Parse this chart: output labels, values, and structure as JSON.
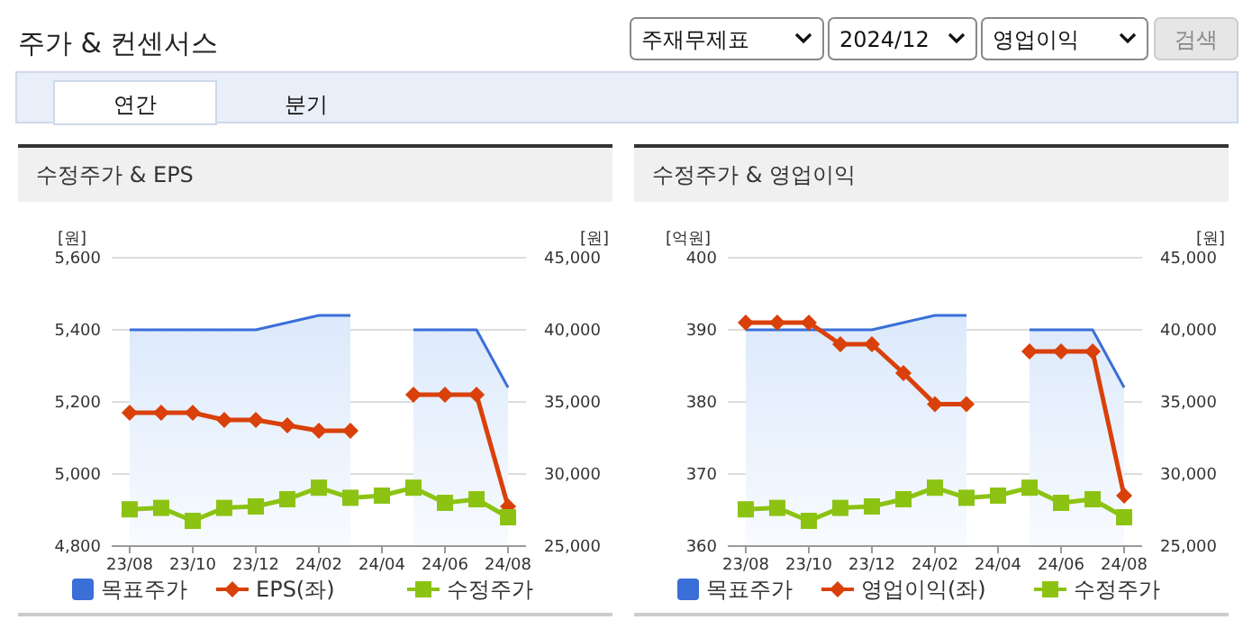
{
  "chart_data": [
    {
      "type": "other",
      "title": "주가 & 컨센서스",
      "annotations": [
        "주재무제표",
        "2024/12",
        "영업이익",
        "검색",
        "연간",
        "분기"
      ]
    },
    {
      "type": "line",
      "title": "수정주가 & EPS",
      "ylabel": "[원]",
      "y2label": "[원]",
      "categories": [
        "23/08",
        null,
        "23/10",
        null,
        "23/12",
        null,
        "24/02",
        null,
        "24/04",
        null,
        "24/06",
        null,
        "24/08"
      ],
      "series": [
        {
          "name": "목표주가",
          "type": "area",
          "axis": "y2",
          "color": "#3a6fd8",
          "values": [
            40000,
            40000,
            40000,
            40000,
            40000,
            40500,
            41000,
            41000,
            null,
            40000,
            40000,
            40000,
            36000
          ]
        },
        {
          "name": "EPS(좌)",
          "marker": "diamond",
          "color": "#d9400a",
          "values": [
            5170,
            5170,
            5170,
            5150,
            5150,
            5135,
            5120,
            5120,
            null,
            5220,
            5220,
            5220,
            4910
          ]
        },
        {
          "name": "수정주가",
          "marker": "square",
          "axis": "y2",
          "color": "#8cc313",
          "values": [
            27550,
            27650,
            26750,
            27650,
            27750,
            28250,
            29050,
            28350,
            28500,
            29050,
            28000,
            28250,
            27000
          ]
        }
      ],
      "ylim": [
        4800,
        5600
      ],
      "yticks": [
        {
          "value": 4800,
          "label": "4,800"
        },
        {
          "value": 5000,
          "label": "5,000"
        },
        {
          "value": 5200,
          "label": "5,200"
        },
        {
          "value": 5400,
          "label": "5,400"
        },
        {
          "value": 5600,
          "label": "5,600"
        }
      ],
      "y2lim": [
        25000,
        45000
      ],
      "y2ticks": [
        {
          "value": 25000,
          "label": "25,000"
        },
        {
          "value": 30000,
          "label": "30,000"
        },
        {
          "value": 35000,
          "label": "35,000"
        },
        {
          "value": 40000,
          "label": "40,000"
        },
        {
          "value": 45000,
          "label": "45,000"
        }
      ],
      "grid": "y",
      "legend": "bottom"
    },
    {
      "type": "line",
      "title": "수정주가 & 영업이익",
      "ylabel": "[억원]",
      "y2label": "[원]",
      "categories": [
        "23/08",
        null,
        "23/10",
        null,
        "23/12",
        null,
        "24/02",
        null,
        "24/04",
        null,
        "24/06",
        null,
        "24/08"
      ],
      "series": [
        {
          "name": "목표주가",
          "type": "area",
          "axis": "y2",
          "color": "#3a6fd8",
          "values": [
            40000,
            40000,
            40000,
            40000,
            40000,
            40500,
            41000,
            41000,
            null,
            40000,
            40000,
            40000,
            36000
          ]
        },
        {
          "name": "영업이익(좌)",
          "marker": "diamond",
          "color": "#d9400a",
          "values": [
            391,
            391,
            391,
            388,
            388,
            384,
            379.7,
            379.7,
            null,
            387,
            387,
            387,
            367
          ]
        },
        {
          "name": "수정주가",
          "marker": "square",
          "axis": "y2",
          "color": "#8cc313",
          "values": [
            27550,
            27650,
            26750,
            27650,
            27750,
            28250,
            29050,
            28350,
            28500,
            29050,
            28000,
            28250,
            27000
          ]
        }
      ],
      "ylim": [
        360,
        400
      ],
      "yticks": [
        360,
        370,
        380,
        390,
        400
      ],
      "y2lim": [
        25000,
        45000
      ],
      "y2ticks": [
        {
          "value": 25000,
          "label": "25,000"
        },
        {
          "value": 30000,
          "label": "30,000"
        },
        {
          "value": 35000,
          "label": "35,000"
        },
        {
          "value": 40000,
          "label": "40,000"
        },
        {
          "value": 45000,
          "label": "45,000"
        }
      ],
      "grid": "y",
      "legend": "bottom"
    }
  ]
}
